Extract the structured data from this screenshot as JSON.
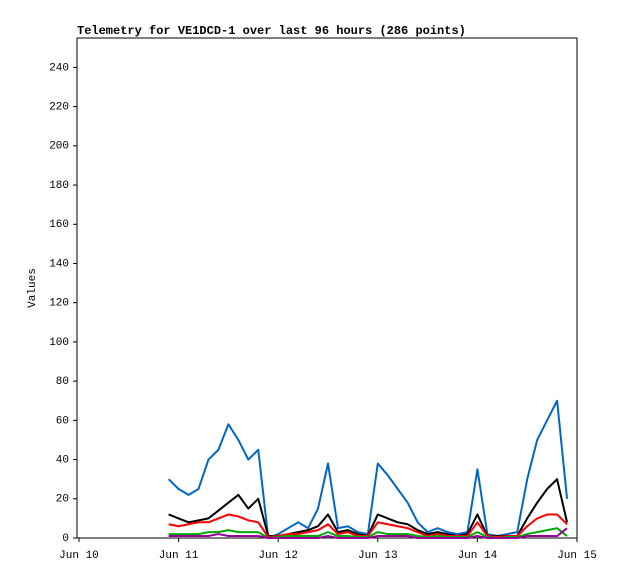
{
  "chart_data": {
    "type": "line",
    "title": "Telemetry for VE1DCD-1 over last 96 hours (286 points)",
    "ylabel": "Values",
    "x": [
      10.9,
      11.0,
      11.1,
      11.2,
      11.3,
      11.4,
      11.5,
      11.6,
      11.7,
      11.8,
      11.9,
      12.0,
      12.1,
      12.2,
      12.3,
      12.4,
      12.5,
      12.6,
      12.7,
      12.8,
      12.9,
      13.0,
      13.1,
      13.2,
      13.3,
      13.4,
      13.5,
      13.6,
      13.7,
      13.8,
      13.9,
      14.0,
      14.1,
      14.2,
      14.3,
      14.4,
      14.5,
      14.6,
      14.7,
      14.8,
      14.9
    ],
    "series": [
      {
        "color": "#0066cc",
        "values": [
          30,
          25,
          22,
          25,
          40,
          45,
          58,
          50,
          40,
          45,
          0,
          2,
          5,
          8,
          5,
          15,
          38,
          5,
          6,
          3,
          2,
          38,
          32,
          25,
          18,
          8,
          3,
          5,
          3,
          2,
          3,
          35,
          2,
          1,
          2,
          3,
          30,
          50,
          60,
          70,
          20
        ]
      },
      {
        "color": "#000000",
        "values": [
          12,
          10,
          8,
          9,
          10,
          14,
          18,
          22,
          15,
          20,
          1,
          1,
          2,
          3,
          4,
          6,
          12,
          3,
          4,
          2,
          1,
          12,
          10,
          8,
          7,
          4,
          2,
          3,
          2,
          1,
          2,
          12,
          1,
          1,
          1,
          1,
          10,
          18,
          25,
          30,
          8
        ]
      },
      {
        "color": "#ff0000",
        "values": [
          7,
          6,
          7,
          8,
          8,
          10,
          12,
          11,
          9,
          8,
          0.5,
          1,
          2,
          2,
          3,
          4,
          7,
          2,
          3,
          1,
          1,
          8,
          7,
          6,
          5,
          3,
          1,
          2,
          1,
          1,
          1,
          8,
          1,
          0.5,
          1,
          1,
          6,
          10,
          12,
          12,
          7
        ]
      },
      {
        "color": "#00aa00",
        "values": [
          2,
          2,
          2,
          2,
          3,
          3,
          4,
          3,
          3,
          3,
          0,
          0.5,
          1,
          1,
          1,
          1,
          3,
          1,
          1,
          0.5,
          0.5,
          3,
          2,
          2,
          2,
          1,
          0.5,
          1,
          0.5,
          0.5,
          0.5,
          3,
          0.5,
          0,
          0.5,
          0.5,
          2,
          3,
          4,
          5,
          1
        ]
      },
      {
        "color": "#990099",
        "values": [
          1,
          1,
          1,
          1,
          1,
          2,
          1,
          1,
          1,
          1,
          0,
          0,
          0,
          0,
          0,
          0,
          1,
          0,
          0,
          0,
          0,
          1,
          1,
          1,
          1,
          0,
          0,
          0,
          0,
          0,
          0,
          1,
          0,
          0,
          0,
          0,
          1,
          1,
          1,
          1,
          5
        ]
      }
    ],
    "xlim": [
      9.98,
      15
    ],
    "xticks": [
      {
        "value": 10,
        "label": "Jun 10"
      },
      {
        "value": 11,
        "label": "Jun 11"
      },
      {
        "value": 12,
        "label": "Jun 12"
      },
      {
        "value": 13,
        "label": "Jun 13"
      },
      {
        "value": 14,
        "label": "Jun 14"
      },
      {
        "value": 15,
        "label": "Jun 15"
      }
    ],
    "ylim": [
      0,
      255
    ],
    "yticks": [
      0,
      20,
      40,
      60,
      80,
      100,
      120,
      140,
      160,
      180,
      200,
      220,
      240
    ],
    "grid": false
  }
}
